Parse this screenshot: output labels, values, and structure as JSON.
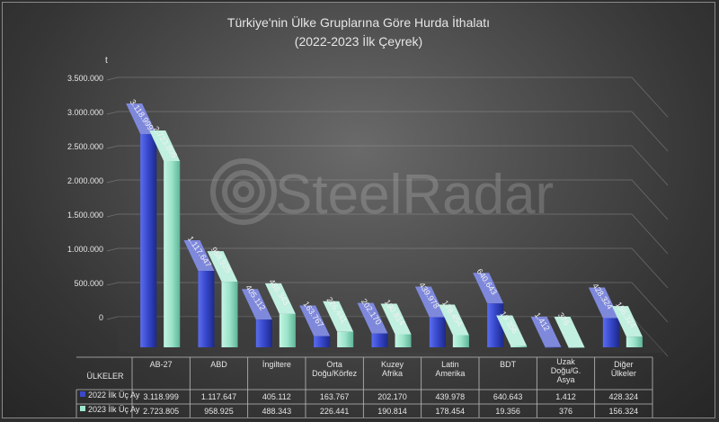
{
  "chart_data": {
    "type": "bar",
    "title": "Türkiye'nin Ülke Gruplarına Göre Hurda İthalatı",
    "subtitle": "(2022-2023 İlk Çeyrek)",
    "ylabel": "t",
    "ylim": [
      0,
      3500000
    ],
    "yticks": [
      "0",
      "500.000",
      "1.000.000",
      "1.500.000",
      "2.000.000",
      "2.500.000",
      "3.000.000",
      "3.500.000"
    ],
    "categories_header": "ÜLKELER",
    "categories": [
      "AB-27",
      "ABD",
      "İngiltere",
      "Orta Doğu/Körfez",
      "Kuzey Afrika",
      "Latin Amerika",
      "BDT",
      "Uzak Doğu/G. Asya",
      "Diğer Ülkeler"
    ],
    "series": [
      {
        "name": "2022 İlk Üç Ay",
        "color": "#3a49c9",
        "values": [
          3118999,
          1117647,
          405112,
          163767,
          202170,
          439978,
          640643,
          1412,
          428324
        ],
        "labels": [
          "3.118.999",
          "1.117.647",
          "405.112",
          "163.767",
          "202.170",
          "439.978",
          "640.643",
          "1.412",
          "428.324"
        ]
      },
      {
        "name": "2023 İlk Üç Ay",
        "color": "#9fe6cf",
        "values": [
          2723805,
          958925,
          488343,
          226441,
          190814,
          178454,
          19356,
          376,
          156324
        ],
        "labels": [
          "2.723.805",
          "958.925",
          "488.343",
          "226.441",
          "190.814",
          "178.454",
          "19.356",
          "376",
          "156.324"
        ]
      }
    ],
    "grid": true,
    "legend": "data-table",
    "watermark": "SteelRadar"
  }
}
